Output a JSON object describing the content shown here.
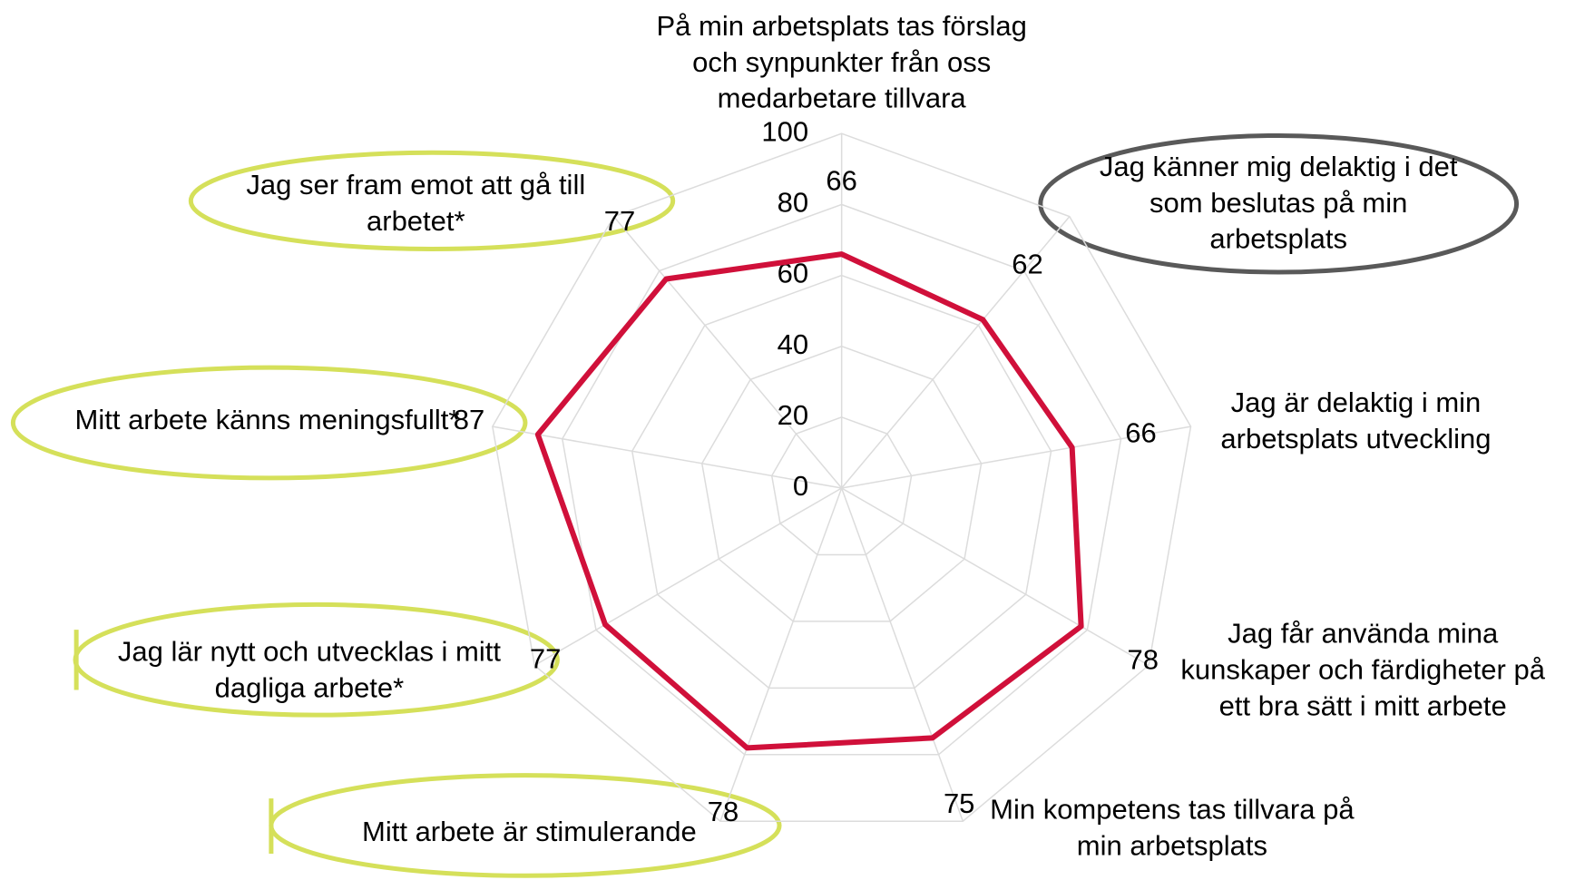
{
  "chart_data": {
    "type": "radar",
    "categories": [
      "På min arbetsplats tas förslag\noch synpunkter från oss\nmedarbetare tillvara",
      "Jag känner mig delaktig i det\nsom beslutas på min\narbetsplats",
      "Jag är delaktig i min\narbetsplats utveckling",
      "Jag får använda mina\nkunskaper och färdigheter på\nett bra sätt i mitt arbete",
      "Min kompetens tas tillvara på\nmin arbetsplats",
      "Mitt arbete är stimulerande",
      "Jag lär nytt och utvecklas i mitt\ndagliga arbete*",
      "Mitt arbete känns meningsfullt*",
      "Jag ser fram emot att gå till\narbetet*"
    ],
    "values": [
      66,
      62,
      66,
      78,
      75,
      78,
      77,
      87,
      77
    ],
    "color": "#d0103a",
    "ylim": [
      0,
      100
    ],
    "yticks": [
      0,
      20,
      40,
      60,
      80,
      100
    ],
    "grid": true
  }
}
